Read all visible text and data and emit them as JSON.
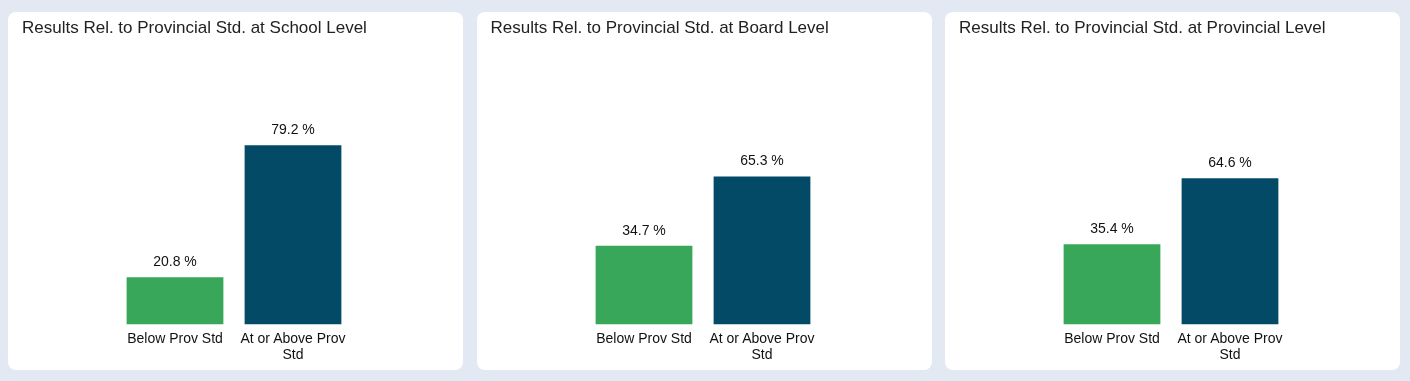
{
  "chart_data": [
    {
      "type": "bar",
      "title": "Results Rel. to Provincial Std. at School Level",
      "categories": [
        "Below Prov Std",
        "At or Above Prov Std"
      ],
      "values": [
        20.8,
        79.2
      ],
      "colors": [
        "#38a75a",
        "#034a66"
      ],
      "value_labels": [
        "20.8 %",
        "79.2 %"
      ]
    },
    {
      "type": "bar",
      "title": "Results Rel. to Provincial Std. at Board Level",
      "categories": [
        "Below Prov Std",
        "At or Above Prov Std"
      ],
      "values": [
        34.7,
        65.3
      ],
      "colors": [
        "#38a75a",
        "#034a66"
      ],
      "value_labels": [
        "34.7 %",
        "65.3 %"
      ]
    },
    {
      "type": "bar",
      "title": "Results Rel. to Provincial Std. at Provincial Level",
      "categories": [
        "Below Prov Std",
        "At or Above Prov Std"
      ],
      "values": [
        35.4,
        64.6
      ],
      "colors": [
        "#38a75a",
        "#034a66"
      ],
      "value_labels": [
        "35.4 %",
        "64.6 %"
      ]
    }
  ]
}
